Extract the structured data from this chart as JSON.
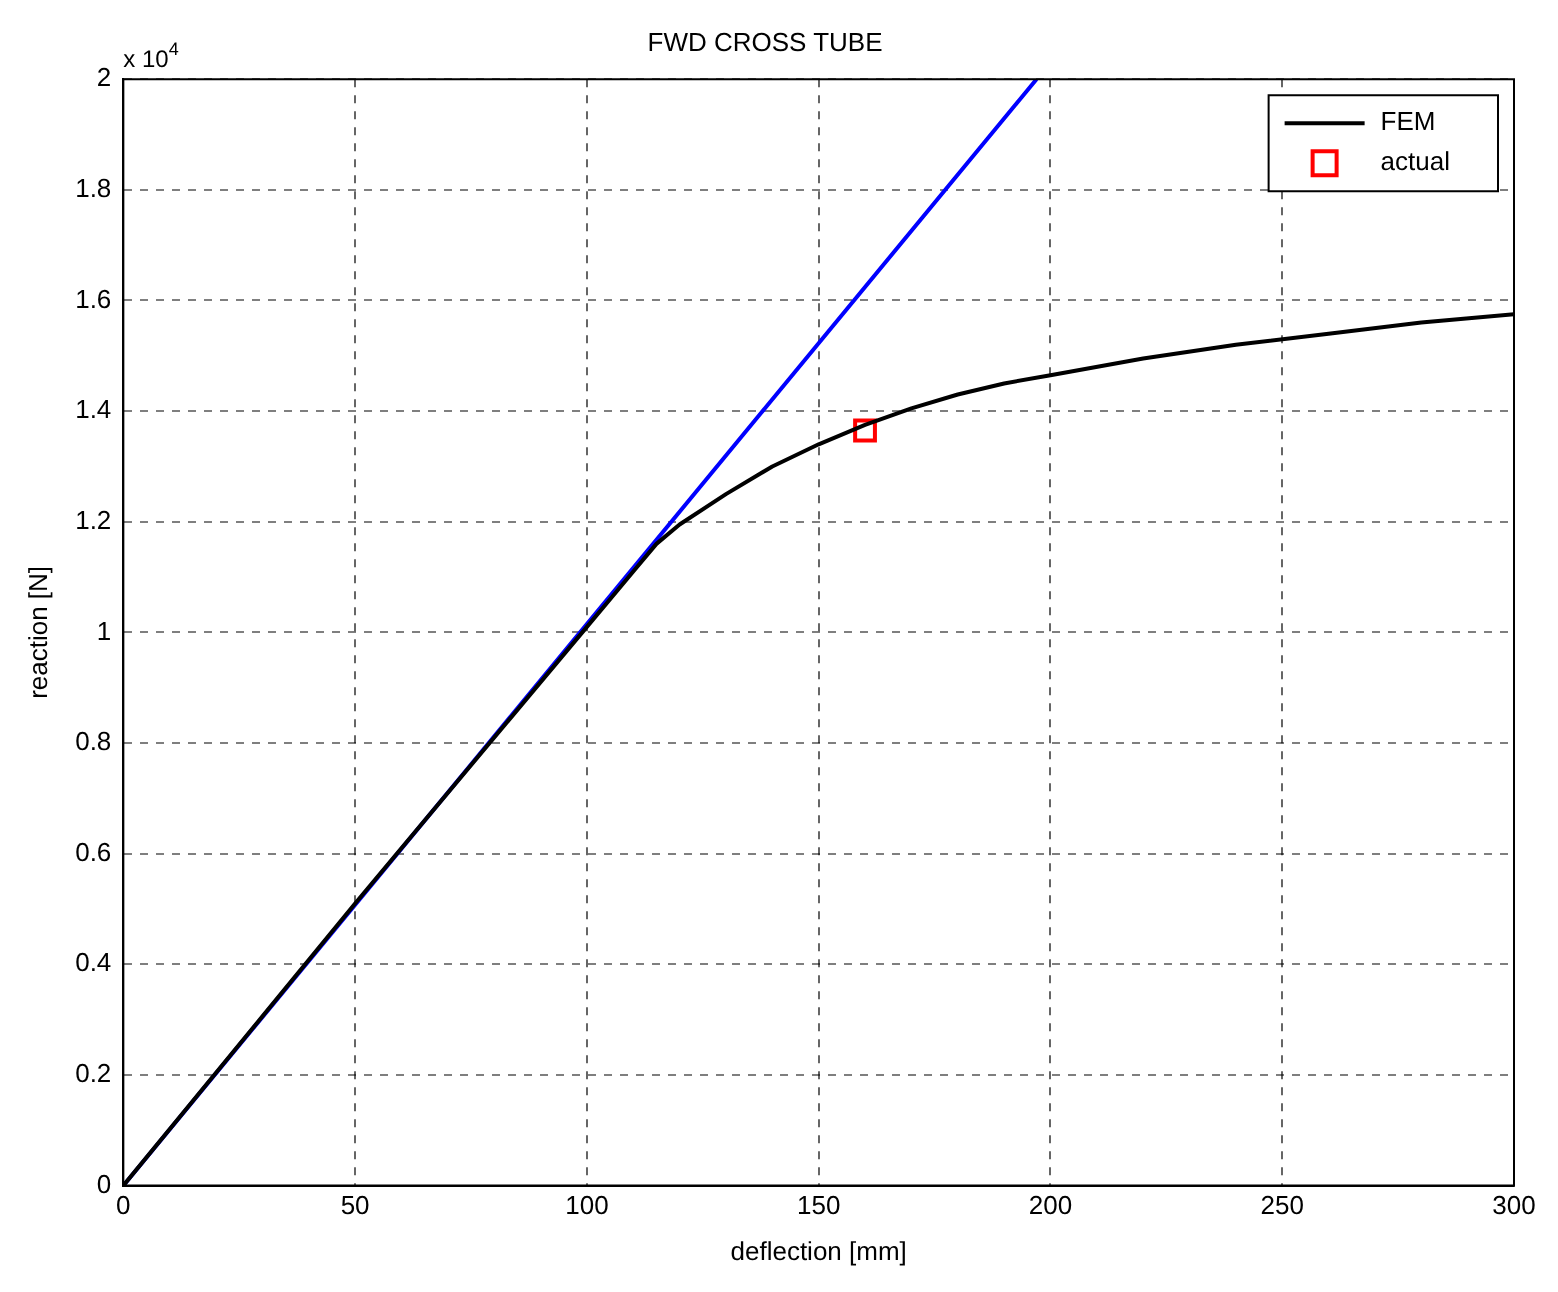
{
  "chart_data": {
    "type": "line",
    "title": "FWD CROSS TUBE",
    "xlabel": "deflection [mm]",
    "ylabel": "reaction [N]",
    "annotations": [
      "x 10$^{4}$"
    ],
    "xlim": [
      0,
      300
    ],
    "xticks": [
      0,
      50,
      100,
      150,
      200,
      250,
      300
    ],
    "ylim": [
      0,
      2
    ],
    "yticks": [
      0,
      0.2,
      0.4,
      0.6,
      0.8,
      1,
      1.2,
      1.4,
      1.6,
      1.8,
      2
    ],
    "grid": true,
    "legend": "top right",
    "line_style": "solid",
    "series": [
      {
        "name": "FEM",
        "color": "#000000",
        "marker": "none",
        "x": [
          0,
          50,
          100,
          105,
          110,
          115,
          120,
          130,
          140,
          150,
          160,
          170,
          180,
          190,
          200,
          220,
          240,
          260,
          280,
          300
        ],
        "values": [
          0,
          0.51,
          1.01,
          1.06,
          1.11,
          1.16,
          1.195,
          1.25,
          1.3,
          1.34,
          1.375,
          1.405,
          1.43,
          1.45,
          1.465,
          1.495,
          1.52,
          1.54,
          1.56,
          1.575
        ]
      },
      {
        "color": "#0000ff",
        "marker": "none",
        "x": [
          0,
          100,
          197
        ],
        "values": [
          0,
          1.015,
          2
        ]
      },
      {
        "name": "actual",
        "type": "scatter",
        "color": "#ff0000",
        "marker": "square",
        "x": [
          160
        ],
        "values": [
          1.365
        ]
      }
    ]
  }
}
